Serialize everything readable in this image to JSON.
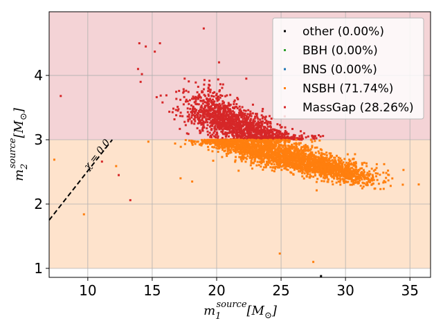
{
  "chart_data": {
    "type": "scatter",
    "title": "",
    "xlabel": {
      "base": "m",
      "sub": "1",
      "sup": "source",
      "tail": "[M",
      "tail_sub": "⊙",
      "close": "]"
    },
    "ylabel": {
      "base": "m",
      "sub": "2",
      "sup": "source",
      "tail": "[M",
      "tail_sub": "⊙",
      "close": "]"
    },
    "xlim": [
      7.0,
      36.6
    ],
    "ylim": [
      0.86,
      4.99
    ],
    "xticks": [
      10,
      15,
      20,
      25,
      30,
      35
    ],
    "yticks": [
      1,
      2,
      3,
      4
    ],
    "grid": true,
    "regions": [
      {
        "name": "MassGap",
        "y_from": 3.0,
        "y_to": 4.99,
        "color": "#f4d3d6"
      },
      {
        "name": "NSBH",
        "y_from": 1.0,
        "y_to": 3.0,
        "color": "#fee3cc"
      }
    ],
    "reference_line": {
      "label": "χ = 0.0",
      "points": [
        [
          7.0,
          1.75
        ],
        [
          11.9,
          3.0
        ]
      ],
      "style": "dashed"
    },
    "legend": {
      "position": "top-right",
      "entries": [
        {
          "label": "other (0.00%)",
          "color": "#000000"
        },
        {
          "label": "BBH (0.00%)",
          "color": "#2ca02c"
        },
        {
          "label": "BNS (0.00%)",
          "color": "#1f77b4"
        },
        {
          "label": "NSBH (71.74%)",
          "color": "#ff7f0e"
        },
        {
          "label": "MassGap (28.26%)",
          "color": "#d62728"
        }
      ]
    },
    "series": [
      {
        "name": "MassGap",
        "color": "#d62728",
        "clusters": [
          {
            "cx": 21.0,
            "cy": 3.28,
            "sx": 1.7,
            "sy": 0.14,
            "n": 900
          },
          {
            "cx": 23.8,
            "cy": 3.06,
            "sx": 1.5,
            "sy": 0.08,
            "n": 500
          },
          {
            "cx": 19.4,
            "cy": 3.55,
            "sx": 0.9,
            "sy": 0.18,
            "n": 180
          }
        ],
        "outliers": [
          [
            14.0,
            4.5
          ],
          [
            14.5,
            4.45
          ],
          [
            15.2,
            4.37
          ],
          [
            13.9,
            4.1
          ],
          [
            14.2,
            4.02
          ],
          [
            14.1,
            3.9
          ],
          [
            19.0,
            4.73
          ],
          [
            7.9,
            3.68
          ],
          [
            11.1,
            2.66
          ],
          [
            12.4,
            2.45
          ],
          [
            22.3,
            3.95
          ],
          [
            20.5,
            3.86
          ],
          [
            13.3,
            2.06
          ],
          [
            15.6,
            4.5
          ],
          [
            16.1,
            3.69
          ],
          [
            15.8,
            3.58
          ]
        ]
      },
      {
        "name": "NSBH",
        "color": "#ff7f0e",
        "clusters": [
          {
            "cx": 24.5,
            "cy": 2.8,
            "sx": 2.5,
            "sy": 0.12,
            "n": 1600
          },
          {
            "cx": 28.8,
            "cy": 2.55,
            "sx": 1.8,
            "sy": 0.08,
            "n": 900
          },
          {
            "cx": 21.0,
            "cy": 2.95,
            "sx": 1.0,
            "sy": 0.05,
            "n": 300
          }
        ],
        "outliers": [
          [
            7.4,
            2.69
          ],
          [
            9.7,
            1.84
          ],
          [
            12.2,
            2.59
          ],
          [
            14.7,
            2.97
          ],
          [
            24.9,
            1.23
          ],
          [
            27.5,
            1.1
          ],
          [
            33.3,
            2.52
          ],
          [
            34.5,
            2.53
          ],
          [
            17.2,
            2.4
          ],
          [
            18.1,
            2.35
          ],
          [
            33.0,
            2.62
          ],
          [
            30.5,
            2.3
          ]
        ]
      },
      {
        "name": "other",
        "color": "#000000",
        "clusters": [],
        "outliers": [
          [
            28.1,
            0.88
          ]
        ]
      }
    ]
  }
}
